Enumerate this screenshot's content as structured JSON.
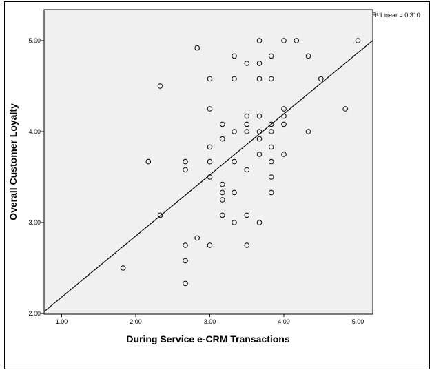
{
  "chart_data": {
    "type": "scatter",
    "title": "",
    "xlabel": "During Service e-CRM Transactions",
    "ylabel": "Overall Customer Loyalty",
    "xlim": [
      0.75,
      5.22
    ],
    "ylim": [
      2.0,
      5.34
    ],
    "x_ticks": [
      "1.00",
      "2.00",
      "3.00",
      "4.00",
      "5.00"
    ],
    "y_ticks": [
      "2.00",
      "3.00",
      "4.00",
      "5.00"
    ],
    "grid": false,
    "background": "#f0f0f0",
    "fit_line": {
      "label": "R² Linear = 0.310",
      "intercept": 1.52,
      "slope": 0.667
    },
    "points": [
      [
        1.83,
        2.5
      ],
      [
        2.17,
        3.67
      ],
      [
        2.33,
        4.5
      ],
      [
        2.33,
        3.08
      ],
      [
        2.67,
        3.67
      ],
      [
        2.67,
        3.58
      ],
      [
        2.67,
        2.75
      ],
      [
        2.67,
        2.58
      ],
      [
        2.67,
        2.33
      ],
      [
        2.83,
        4.92
      ],
      [
        2.83,
        2.83
      ],
      [
        3.0,
        4.58
      ],
      [
        3.0,
        4.25
      ],
      [
        3.0,
        3.83
      ],
      [
        3.0,
        3.67
      ],
      [
        3.0,
        3.5
      ],
      [
        3.0,
        2.75
      ],
      [
        3.17,
        4.08
      ],
      [
        3.17,
        3.92
      ],
      [
        3.17,
        3.42
      ],
      [
        3.17,
        3.33
      ],
      [
        3.17,
        3.25
      ],
      [
        3.17,
        3.08
      ],
      [
        3.33,
        4.83
      ],
      [
        3.33,
        4.58
      ],
      [
        3.33,
        4.0
      ],
      [
        3.33,
        3.67
      ],
      [
        3.33,
        3.33
      ],
      [
        3.33,
        3.0
      ],
      [
        3.5,
        4.75
      ],
      [
        3.5,
        4.17
      ],
      [
        3.5,
        4.08
      ],
      [
        3.5,
        4.0
      ],
      [
        3.5,
        3.58
      ],
      [
        3.5,
        3.08
      ],
      [
        3.5,
        2.75
      ],
      [
        3.67,
        5.0
      ],
      [
        3.67,
        4.75
      ],
      [
        3.67,
        4.58
      ],
      [
        3.67,
        4.17
      ],
      [
        3.67,
        4.0
      ],
      [
        3.67,
        3.92
      ],
      [
        3.67,
        3.75
      ],
      [
        3.67,
        3.0
      ],
      [
        3.83,
        4.83
      ],
      [
        3.83,
        4.58
      ],
      [
        3.83,
        4.08
      ],
      [
        3.83,
        4.0
      ],
      [
        3.83,
        3.83
      ],
      [
        3.83,
        3.67
      ],
      [
        3.83,
        3.5
      ],
      [
        3.83,
        3.33
      ],
      [
        4.0,
        5.0
      ],
      [
        4.0,
        4.25
      ],
      [
        4.0,
        4.17
      ],
      [
        4.0,
        4.08
      ],
      [
        4.0,
        3.75
      ],
      [
        4.17,
        5.0
      ],
      [
        4.33,
        4.83
      ],
      [
        4.33,
        4.0
      ],
      [
        4.5,
        4.58
      ],
      [
        4.83,
        4.25
      ],
      [
        5.0,
        5.0
      ]
    ],
    "colors": {
      "marker": "#000000",
      "line": "#000000",
      "plot_bg": "#f0f0f0"
    }
  }
}
